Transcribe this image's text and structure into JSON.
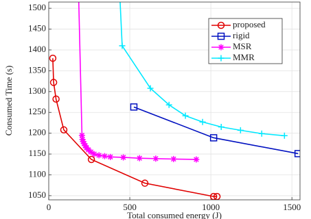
{
  "chart_data": {
    "type": "line",
    "x_label": "Total consumed energy (J)",
    "y_label": "Consumed Time (s)",
    "xlim": [
      0,
      1550
    ],
    "ylim": [
      1040,
      1515
    ],
    "xticks": [
      0,
      500,
      1000,
      1500
    ],
    "yticks": [
      1050,
      1100,
      1150,
      1200,
      1250,
      1300,
      1350,
      1400,
      1450,
      1500
    ],
    "grid": true,
    "legend": "upper right",
    "series": [
      {
        "name": "proposed",
        "color": "#e00000",
        "marker": "circle",
        "x": [
          25,
          30,
          45,
          93,
          263,
          593,
          1017,
          1038
        ],
        "values": [
          1380,
          1322,
          1282,
          1208,
          1137,
          1080,
          1048,
          1048
        ]
      },
      {
        "name": "rigid",
        "color": "#0010c0",
        "marker": "square",
        "x": [
          525,
          1017,
          1538
        ],
        "values": [
          1263,
          1189,
          1151
        ]
      },
      {
        "name": "MSR",
        "color": "#ff00ff",
        "marker": "asterisk",
        "x": [
          180,
          205,
          208,
          212,
          218,
          225,
          233,
          245,
          260,
          280,
          310,
          345,
          380,
          460,
          560,
          660,
          770,
          910
        ],
        "values": [
          1600,
          1195,
          1185,
          1180,
          1175,
          1170,
          1165,
          1160,
          1155,
          1150,
          1147,
          1145,
          1143,
          1142,
          1140,
          1139,
          1138,
          1137
        ]
      },
      {
        "name": "MMR",
        "color": "#00e8ff",
        "marker": "plus",
        "x": [
          430,
          453,
          627,
          742,
          843,
          949,
          1064,
          1183,
          1314,
          1454
        ],
        "values": [
          1600,
          1410,
          1308,
          1268,
          1242,
          1227,
          1215,
          1207,
          1199,
          1194
        ]
      }
    ]
  }
}
